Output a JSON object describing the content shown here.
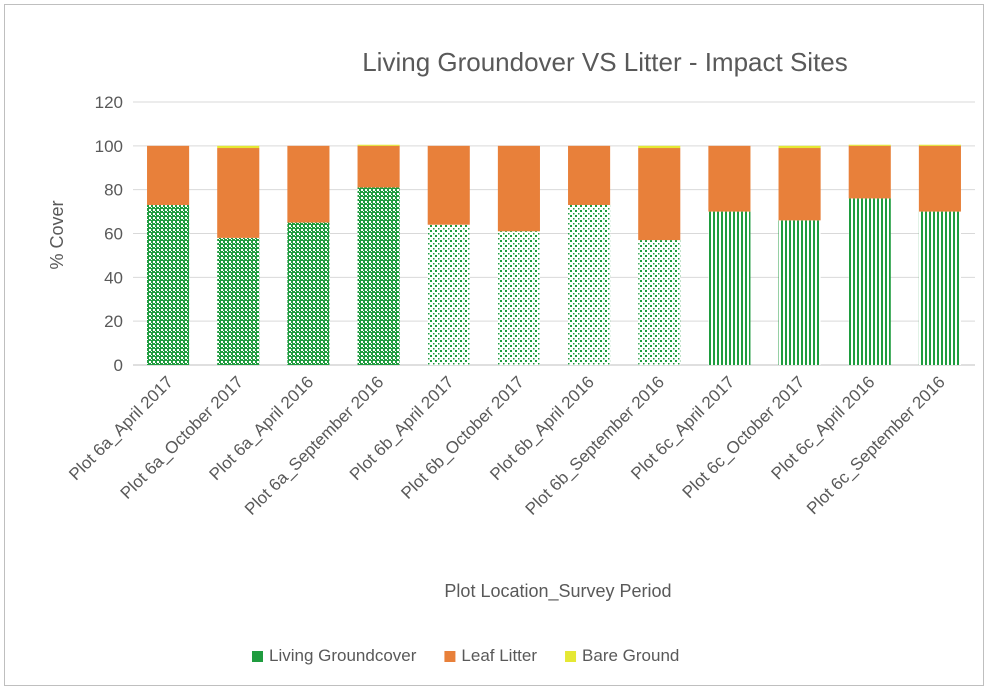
{
  "chart_data": {
    "type": "bar",
    "stacked": true,
    "title": "Living Groundover VS Litter - Impact Sites",
    "xlabel": "Plot Location_Survey Period",
    "ylabel": "% Cover",
    "ylim": [
      0,
      120
    ],
    "yticks": [
      0,
      20,
      40,
      60,
      80,
      100,
      120
    ],
    "grid": true,
    "legend_position": "bottom",
    "categories": [
      "Plot 6a_April 2017",
      "Plot 6a_October 2017",
      "Plot 6a_April 2016",
      "Plot 6a_September 2016",
      "Plot 6b_April 2017",
      "Plot 6b_October 2017",
      "Plot 6b_April 2016",
      "Plot 6b_September 2016",
      "Plot 6c_April 2017",
      "Plot 6c_October 2017",
      "Plot 6c_April 2016",
      "Plot 6c_September 2016"
    ],
    "series": [
      {
        "name": "Living Groundcover",
        "color": "#1f9c3f",
        "values": [
          73,
          58,
          65,
          81,
          64,
          61,
          73,
          57,
          70,
          66,
          76,
          70
        ]
      },
      {
        "name": "Leaf Litter",
        "color": "#e8803a",
        "values": [
          27,
          41,
          35,
          19,
          36,
          39,
          27,
          42,
          30,
          33,
          24,
          30
        ]
      },
      {
        "name": "Bare Ground",
        "color": "#e5e834",
        "values": [
          0,
          1,
          0,
          0.5,
          0,
          0,
          0,
          1,
          0,
          1,
          0.5,
          0.5
        ]
      }
    ],
    "bar_patterns": [
      "checker",
      "checker",
      "checker",
      "checker",
      "dots",
      "dots",
      "dots",
      "dots",
      "stripes",
      "stripes",
      "stripes",
      "stripes"
    ]
  }
}
